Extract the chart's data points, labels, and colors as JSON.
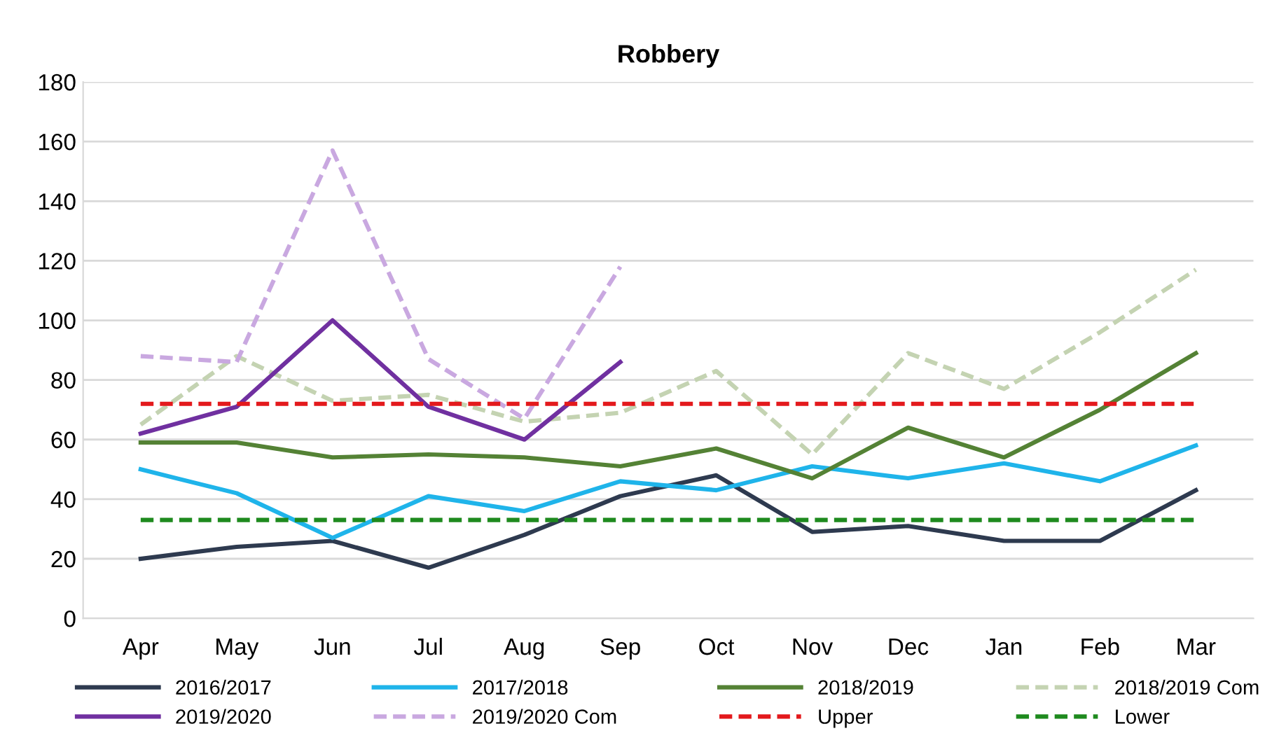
{
  "chart_data": {
    "type": "line",
    "title": "Robbery",
    "categories": [
      "Apr",
      "May",
      "Jun",
      "Jul",
      "Aug",
      "Sep",
      "Oct",
      "Nov",
      "Dec",
      "Jan",
      "Feb",
      "Mar"
    ],
    "series": [
      {
        "name": "2016/2017",
        "color": "#2e3a4f",
        "line_style": "solid",
        "values": [
          20,
          24,
          26,
          17,
          28,
          41,
          48,
          29,
          31,
          26,
          26,
          43
        ]
      },
      {
        "name": "2017/2018",
        "color": "#1fb4ea",
        "line_style": "solid",
        "values": [
          50,
          42,
          27,
          41,
          36,
          46,
          43,
          51,
          47,
          52,
          46,
          58
        ]
      },
      {
        "name": "2018/2019",
        "color": "#548235",
        "line_style": "solid",
        "values": [
          59,
          59,
          54,
          55,
          54,
          51,
          57,
          47,
          64,
          54,
          70,
          89
        ]
      },
      {
        "name": "2018/2019 Com",
        "color": "#c4d3b2",
        "line_style": "dashed",
        "values": [
          65,
          88,
          73,
          75,
          66,
          69,
          83,
          55,
          89,
          77,
          96,
          117
        ]
      },
      {
        "name": "2019/2020",
        "color": "#7030a0",
        "line_style": "solid",
        "values": [
          62,
          71,
          100,
          71,
          60,
          86,
          null,
          null,
          null,
          null,
          null,
          null
        ]
      },
      {
        "name": "2019/2020 Com",
        "color": "#c9a8e0",
        "line_style": "dashed",
        "values": [
          88,
          86,
          157,
          87,
          67,
          118,
          null,
          null,
          null,
          null,
          null,
          null
        ]
      },
      {
        "name": "Upper",
        "color": "#e3191c",
        "line_style": "dashed",
        "values": [
          72,
          72,
          72,
          72,
          72,
          72,
          72,
          72,
          72,
          72,
          72,
          72
        ]
      },
      {
        "name": "Lower",
        "color": "#1e8a1e",
        "line_style": "dashed",
        "values": [
          33,
          33,
          33,
          33,
          33,
          33,
          33,
          33,
          33,
          33,
          33,
          33
        ]
      }
    ],
    "ylim": [
      0,
      180
    ],
    "yticks": [
      0,
      20,
      40,
      60,
      80,
      100,
      120,
      140,
      160,
      180
    ],
    "grid": "y",
    "legend": "bottom",
    "marker": "none"
  }
}
